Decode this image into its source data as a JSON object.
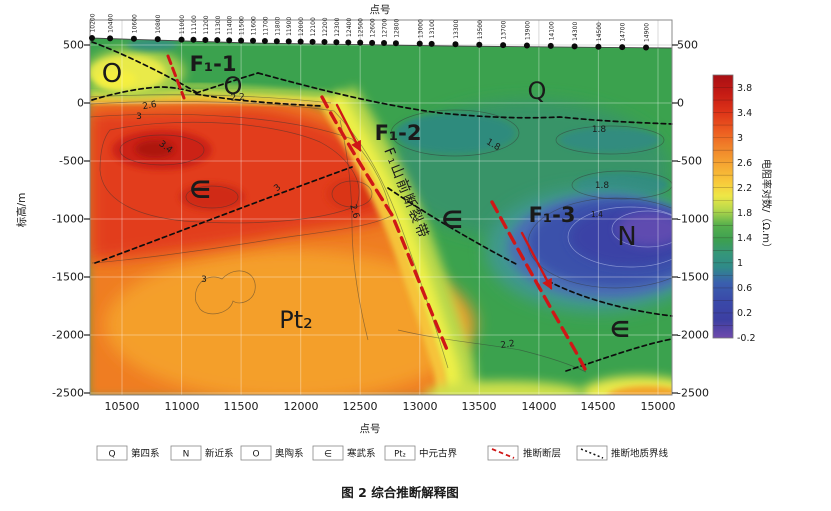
{
  "figure": {
    "caption": "图 2  综合推断解释图"
  },
  "axes": {
    "top_label": "点号",
    "bottom_label": "点号",
    "left_label": "标高/m",
    "left_ticks": [
      "500",
      "0",
      "-500",
      "-1000",
      "-1500",
      "-2000",
      "-2500"
    ],
    "right_ticks": [
      "500",
      "0",
      "-500",
      "-1000",
      "-1500",
      "-2000",
      "-2500"
    ],
    "bottom_ticks": [
      "10500",
      "11000",
      "11500",
      "12000",
      "12500",
      "13000",
      "13500",
      "14000",
      "14500",
      "15000"
    ],
    "stations": [
      "10200",
      "10400",
      "10600",
      "10800",
      "11000",
      "11100",
      "11200",
      "11300",
      "11400",
      "11500",
      "11600",
      "11700",
      "11800",
      "11900",
      "12000",
      "12100",
      "12200",
      "12300",
      "12400",
      "12500",
      "12600",
      "12700",
      "12800",
      "13000",
      "13100",
      "13300",
      "13500",
      "13700",
      "13900",
      "14100",
      "14300",
      "14500",
      "14700",
      "14900"
    ]
  },
  "colorbar": {
    "label": "电阻率对数/（Ω.m）",
    "ticks": [
      "3.8",
      "3.4",
      "3",
      "2.6",
      "2.2",
      "1.8",
      "1.4",
      "1",
      "0.6",
      "0.2",
      "-0.2"
    ]
  },
  "annotations": {
    "units": {
      "o1": "O",
      "o2": "O",
      "q": "Q",
      "e1": "∈",
      "e2": "∈",
      "e3": "∈",
      "n": "N",
      "pt2": "Pt₂"
    },
    "faults": {
      "f1": "F₁-1",
      "f2": "F₁-2",
      "f3": "F₁-3",
      "zone": "F₁山前断裂带"
    },
    "contours": {
      "c1": "2.6",
      "c2": "3",
      "c3": "3.4",
      "c4": "2.2",
      "c5": "3",
      "c6": "2.6",
      "c7": "3",
      "c8": "1.8",
      "c9": "1.8",
      "c10": "1.8",
      "c11": "1.4",
      "c12": "2.2"
    }
  },
  "legend": {
    "items": [
      {
        "symbol": "Q",
        "label": "第四系"
      },
      {
        "symbol": "N",
        "label": "新近系"
      },
      {
        "symbol": "O",
        "label": "奥陶系"
      },
      {
        "symbol": "∈",
        "label": "寒武系"
      },
      {
        "symbol": "Pt₂",
        "label": "中元古界"
      },
      {
        "symbol": "fault-dashed-red",
        "label": "推断断层"
      },
      {
        "symbol": "boundary-dotted-black",
        "label": "推断地质界线"
      }
    ]
  },
  "chart_data": {
    "type": "heatmap",
    "title": "图 2 综合推断解释图",
    "xlabel": "点号",
    "ylabel": "标高/m",
    "x_range": [
      10200,
      15050
    ],
    "y_range": [
      -2500,
      500
    ],
    "x_ticks": [
      10500,
      11000,
      11500,
      12000,
      12500,
      13000,
      13500,
      14000,
      14500,
      15000
    ],
    "y_ticks": [
      500,
      0,
      -500,
      -1000,
      -1500,
      -2000,
      -2500
    ],
    "value_label": "电阻率对数/（Ω.m）",
    "value_range": [
      -0.2,
      4.0
    ],
    "colorbar_ticks": [
      3.8,
      3.4,
      3,
      2.6,
      2.2,
      1.8,
      1.4,
      1,
      0.6,
      0.2,
      -0.2
    ],
    "grid": true,
    "legend_position": "bottom",
    "geologic_units": [
      {
        "label": "O",
        "name": "奥陶系",
        "approx": {
          "station": 10400,
          "elev": 150
        }
      },
      {
        "label": "O",
        "name": "奥陶系",
        "approx": {
          "station": 11450,
          "elev": 80
        }
      },
      {
        "label": "Q",
        "name": "第四系",
        "approx": {
          "station": 13950,
          "elev": 30
        }
      },
      {
        "label": "∈",
        "name": "寒武系",
        "approx": {
          "station": 11150,
          "elev": -800
        }
      },
      {
        "label": "∈",
        "name": "寒武系",
        "approx": {
          "station": 13250,
          "elev": -1050
        }
      },
      {
        "label": "∈",
        "name": "寒武系",
        "approx": {
          "station": 14650,
          "elev": -1950
        }
      },
      {
        "label": "N",
        "name": "新近系",
        "approx": {
          "station": 14700,
          "elev": -1150
        }
      },
      {
        "label": "Pt₂",
        "name": "中元古界",
        "approx": {
          "station": 11950,
          "elev": -1900
        }
      }
    ],
    "faults": [
      {
        "label": "F₁-1",
        "style": "red-dashed",
        "approx_station": 10900
      },
      {
        "label": "F₁-2",
        "style": "red-dashed",
        "zone_label": "F₁山前断裂带",
        "approx_station": 12200
      },
      {
        "label": "F₁-3",
        "style": "red-dashed",
        "approx_station": 13700
      }
    ],
    "contour_label_values": [
      2.6,
      3,
      3.4,
      2.2,
      3,
      2.6,
      3,
      1.8,
      1.8,
      1.8,
      1.4,
      2.2
    ],
    "zones": [
      {
        "desc": "high resistivity (lg≈3.0–3.8, orange/red) lower-left Pt₂/∈ block"
      },
      {
        "desc": "low resistivity (lg≈0.2–1.4, blue/purple) N basin at right, elev -500~-1500"
      },
      {
        "desc": "moderate (lg≈1.8–2.2, green/teal) Q cover and central ∈ wedge"
      }
    ]
  }
}
